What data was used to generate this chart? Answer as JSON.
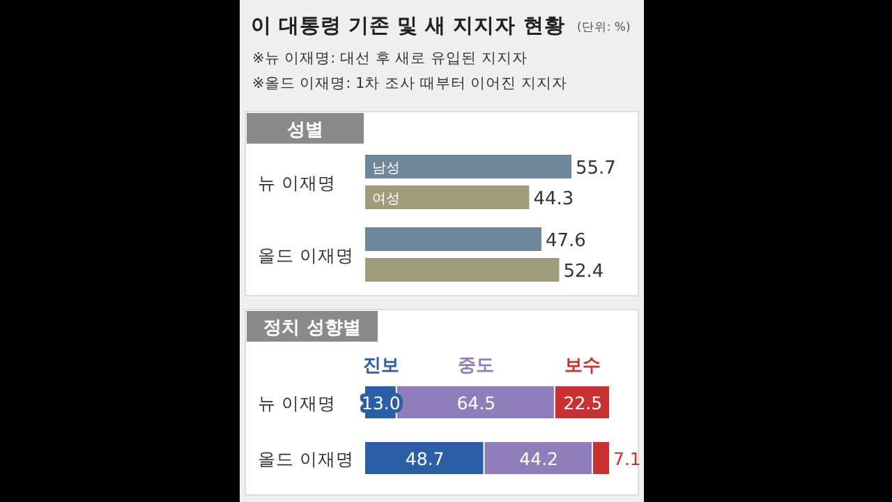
{
  "chart_data": [
    {
      "type": "bar",
      "orientation": "horizontal",
      "title": "이 대통령 기존 및 새 지지자 현황",
      "subtitle": "성별",
      "annotations": [
        "(단위: %)",
        "※뉴 이재명: 대선 후 새로 유입된 지지자",
        "※올드 이재명: 1차 조사 때부터 이어진 지지자"
      ],
      "categories": [
        "뉴 이재명",
        "올드 이재명"
      ],
      "data_labels": true,
      "tick_labels": "y",
      "series": [
        {
          "name": "남성",
          "color": "#6e8799",
          "values": [
            55.7,
            47.6
          ]
        },
        {
          "name": "여성",
          "color": "#a09d7c",
          "values": [
            44.3,
            52.4
          ]
        }
      ]
    },
    {
      "type": "bar",
      "orientation": "horizontal",
      "stacked": true,
      "subtitle": "정치 성향별",
      "categories": [
        "뉴 이재명",
        "올드 이재명"
      ],
      "data_labels": true,
      "tick_labels": "y",
      "series": [
        {
          "name": "진보",
          "color": "#2a5fa5",
          "values": [
            13.0,
            48.7
          ],
          "value_labels": [
            "13.0",
            "48.7"
          ]
        },
        {
          "name": "중도",
          "color": "#8e7fba",
          "values": [
            64.5,
            44.2
          ],
          "value_labels": [
            "64.5",
            "44.2"
          ]
        },
        {
          "name": "보수",
          "color": "#c83232",
          "values": [
            22.5,
            7.1
          ],
          "value_labels": [
            "22.5",
            "7.1"
          ]
        }
      ]
    }
  ]
}
